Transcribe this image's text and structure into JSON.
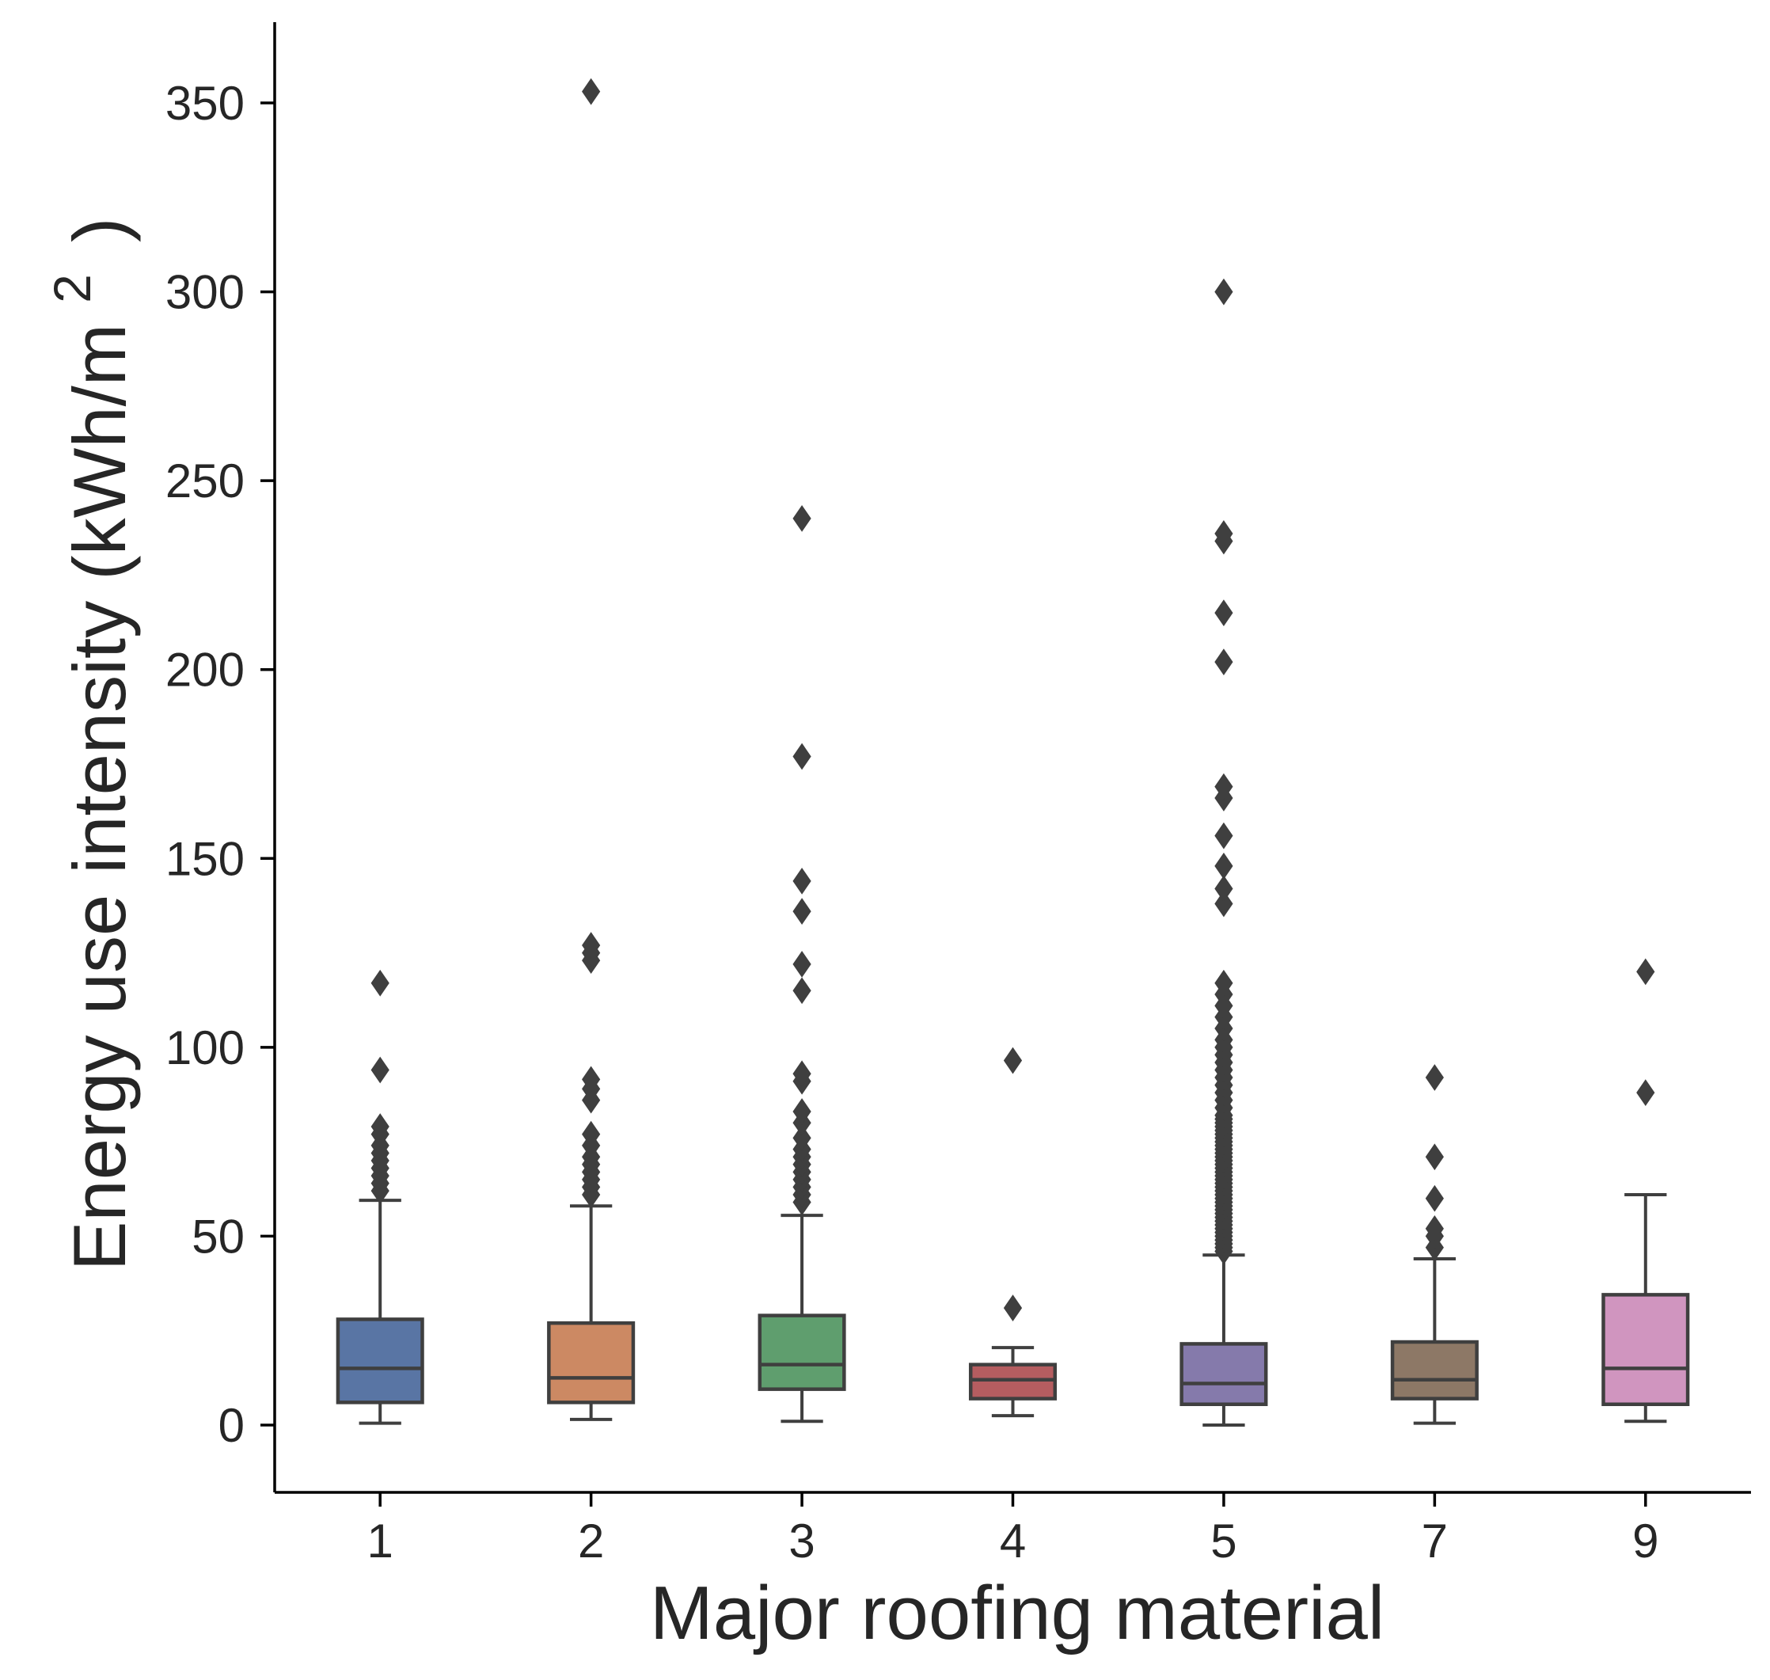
{
  "chart_data": {
    "type": "box",
    "xlabel": "Major roofing material",
    "ylabel": {
      "main": "Energy use intensity (kWh/m",
      "superscript": "2",
      "close": ")"
    },
    "ylim": [
      -18,
      372
    ],
    "yticks": [
      0,
      50,
      100,
      150,
      200,
      250,
      300,
      350
    ],
    "grid": false,
    "categories": [
      "1",
      "2",
      "3",
      "4",
      "5",
      "7",
      "9"
    ],
    "boxes": [
      {
        "category": "1",
        "color": "#5975a4",
        "whisker_low": 0.5,
        "q1": 6,
        "median": 15,
        "q3": 28,
        "whisker_high": 59.5,
        "outliers": [
          62,
          64,
          66,
          68,
          70,
          72,
          74,
          77,
          79,
          94,
          117
        ]
      },
      {
        "category": "2",
        "color": "#cc8963",
        "whisker_low": 1.5,
        "q1": 6,
        "median": 12.5,
        "q3": 27,
        "whisker_high": 58,
        "outliers": [
          61,
          63,
          65,
          67,
          69,
          71,
          74,
          77,
          86,
          89,
          91.5,
          123,
          125,
          127,
          353
        ]
      },
      {
        "category": "3",
        "color": "#5f9e6e",
        "whisker_low": 1,
        "q1": 9.5,
        "median": 16,
        "q3": 29,
        "whisker_high": 55.5,
        "outliers": [
          59,
          61,
          63,
          65,
          67,
          69,
          71,
          73,
          76,
          80,
          83,
          91,
          93,
          115,
          122,
          136,
          144,
          177,
          240
        ]
      },
      {
        "category": "4",
        "color": "#b55d60",
        "whisker_low": 2.5,
        "q1": 7,
        "median": 12,
        "q3": 16,
        "whisker_high": 20.5,
        "outliers": [
          31,
          96.5
        ]
      },
      {
        "category": "5",
        "color": "#857aab",
        "whisker_low": 0,
        "q1": 5.5,
        "median": 11,
        "q3": 21.5,
        "whisker_high": 45,
        "outliers": [
          46,
          47,
          48,
          49,
          50,
          51,
          52,
          53,
          54,
          55,
          56,
          57,
          58,
          59,
          60,
          61,
          62,
          63,
          64,
          65,
          66,
          67,
          68,
          69,
          70,
          71,
          72,
          73,
          74,
          75,
          76,
          77,
          78,
          79,
          80,
          81,
          82,
          84,
          86,
          88,
          90,
          92,
          94,
          96,
          98,
          100,
          102,
          105,
          108,
          111,
          114,
          117,
          138,
          142,
          148,
          156,
          166,
          169,
          202,
          215,
          234,
          236,
          300
        ]
      },
      {
        "category": "7",
        "color": "#8d7866",
        "whisker_low": 0.5,
        "q1": 7,
        "median": 12,
        "q3": 22,
        "whisker_high": 44,
        "outliers": [
          47,
          50,
          52,
          60,
          71,
          92
        ]
      },
      {
        "category": "9",
        "color": "#d095bf",
        "whisker_low": 1,
        "q1": 5.5,
        "median": 15,
        "q3": 34.5,
        "whisker_high": 61,
        "outliers": [
          88,
          120
        ]
      }
    ]
  }
}
